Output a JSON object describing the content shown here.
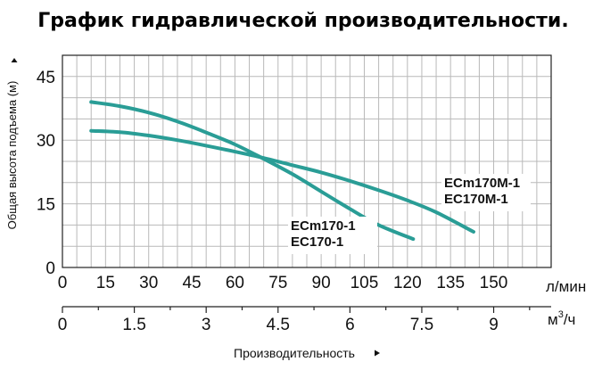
{
  "chart_data": {
    "type": "line",
    "title": "График гидравлической производительности.",
    "ylabel": "Общая высота подъема (м)",
    "xlabel": "Производительность",
    "x_unit": "л/мин",
    "x2_unit_base": "м",
    "x2_unit_sup": "3",
    "x2_unit_tail": "/ч",
    "xlim": [
      0,
      170
    ],
    "ylim": [
      0,
      50
    ],
    "yticks": [
      "0",
      "15",
      "30",
      "45"
    ],
    "ytick_values": [
      0,
      15,
      30,
      45
    ],
    "xticks": [
      "0",
      "15",
      "30",
      "45",
      "60",
      "75",
      "90",
      "105",
      "120",
      "135",
      "150"
    ],
    "xtick_values": [
      0,
      15,
      30,
      45,
      60,
      75,
      90,
      105,
      120,
      135,
      150
    ],
    "x2ticks": [
      "0",
      "1.5",
      "3",
      "4.5",
      "6",
      "7.5",
      "9"
    ],
    "x2tick_values": [
      0,
      1.5,
      3,
      4.5,
      6,
      7.5,
      9
    ],
    "grid": true,
    "color": "#2a9d96",
    "series": [
      {
        "label_lines": [
          "ECm170-1",
          "EC170-1"
        ],
        "x": [
          10,
          20,
          30,
          40,
          50,
          60,
          70,
          80,
          90,
          100,
          110,
          122
        ],
        "y": [
          39,
          38,
          36.5,
          34.4,
          31.8,
          29,
          25.6,
          22,
          17.9,
          13.8,
          10,
          6.7
        ]
      },
      {
        "label_lines": [
          "ECm170M-1",
          "EC170M-1"
        ],
        "x": [
          10,
          20,
          30,
          40,
          50,
          60,
          70,
          80,
          90,
          100,
          110,
          120,
          130,
          143
        ],
        "y": [
          32.2,
          31.9,
          31.1,
          30,
          28.7,
          27.3,
          25.8,
          24.1,
          22.4,
          20.4,
          18.2,
          15.8,
          13,
          8.4
        ]
      }
    ]
  }
}
